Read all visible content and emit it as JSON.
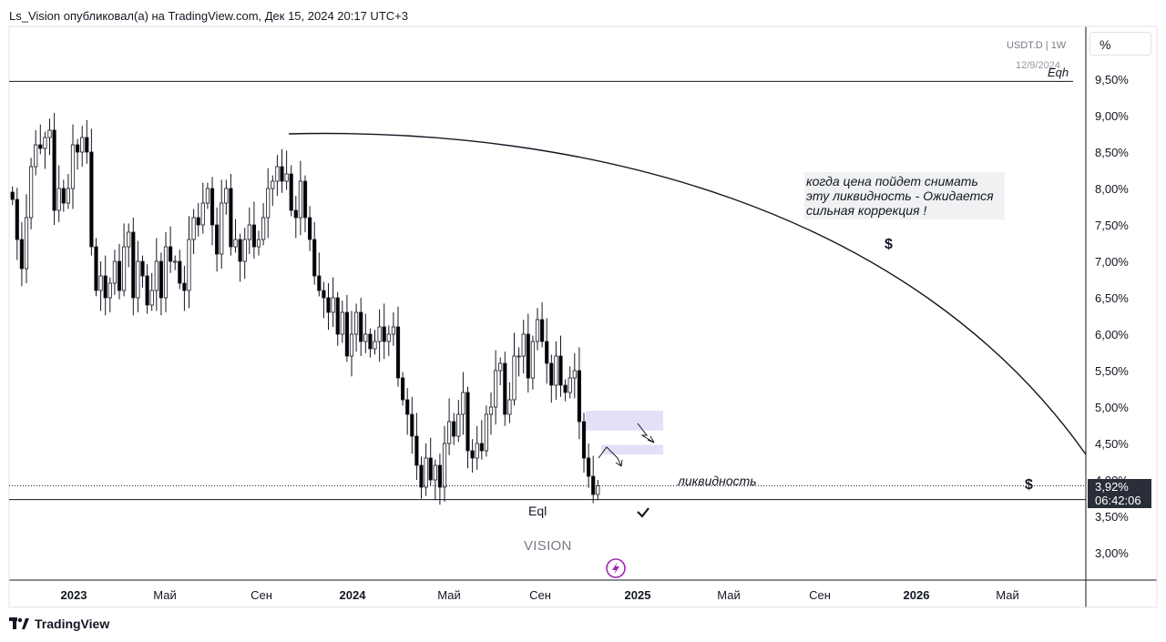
{
  "header": {
    "publisher": "Ls_Vision опубликовал(а) на TradingView.com, Дек 15, 2024 20:17 UTC+3"
  },
  "footer": {
    "brand": "TradingView",
    "logo_icon": "tradingview-logo-icon"
  },
  "symbol_label": "USDT.D  |  1W",
  "scale_mode": "%",
  "price_tag": {
    "price": "3,92%",
    "countdown": "06:42:06"
  },
  "annotations": {
    "eqh_date": "12/9/2024",
    "eqh": "Eqh",
    "note": "когда цена пойдет снимать эту ликвидность - Ожидается сильная коррекция !",
    "liquidity": "ликвидность",
    "eql": "Eql",
    "watermark": "VISION",
    "dollar": "$"
  },
  "colors": {
    "up": "#ffffff",
    "down": "#000000",
    "zone": "#e3e0f7",
    "lightning": "#9c27b0",
    "tag_bg": "#2a2e39"
  },
  "chart_data": {
    "type": "candlestick",
    "x_tick_labels": [
      "2023",
      "Май",
      "Сен",
      "2024",
      "Май",
      "Сен",
      "2025",
      "Май",
      "Сен",
      "2026",
      "Май"
    ],
    "x_tick_bold": [
      true,
      false,
      false,
      true,
      false,
      false,
      true,
      false,
      false,
      true,
      false
    ],
    "y_tick_labels": [
      "9,50%",
      "9,00%",
      "8,50%",
      "8,00%",
      "7,50%",
      "7,00%",
      "6,50%",
      "6,00%",
      "5,50%",
      "5,00%",
      "4,50%",
      "4,00%",
      "3,50%",
      "3,00%"
    ],
    "y_ticks": [
      9.5,
      9.0,
      8.5,
      8.0,
      7.5,
      7.0,
      6.5,
      6.0,
      5.5,
      5.0,
      4.5,
      4.0,
      3.5,
      3.0
    ],
    "ylim": [
      2.7,
      9.9
    ],
    "levels": {
      "eqh": 9.47,
      "eql": 3.73,
      "current": 3.92
    },
    "current_price": 3.92,
    "weekly_closes": [
      7.85,
      7.3,
      6.9,
      7.6,
      8.3,
      8.6,
      8.55,
      8.7,
      8.8,
      7.7,
      8.0,
      7.8,
      8.0,
      8.6,
      8.5,
      8.7,
      8.5,
      7.2,
      6.6,
      6.8,
      6.5,
      6.7,
      7.0,
      6.6,
      7.2,
      7.4,
      6.5,
      7.0,
      6.8,
      6.4,
      6.6,
      7.0,
      6.5,
      7.2,
      7.0,
      7.0,
      6.7,
      6.6,
      7.3,
      7.6,
      7.5,
      7.8,
      8.0,
      7.5,
      7.1,
      7.8,
      8.0,
      7.2,
      7.3,
      7.0,
      7.3,
      7.5,
      7.2,
      7.3,
      7.6,
      8.0,
      8.1,
      8.3,
      8.1,
      8.2,
      7.7,
      7.6,
      8.1,
      7.6,
      7.3,
      6.8,
      6.6,
      6.5,
      6.3,
      6.5,
      6.0,
      6.3,
      5.7,
      6.0,
      6.3,
      5.9,
      6.0,
      5.8,
      5.9,
      6.1,
      5.9,
      6.0,
      6.1,
      5.4,
      5.1,
      4.9,
      4.6,
      4.2,
      3.9,
      4.3,
      4.0,
      4.2,
      3.9,
      4.5,
      4.8,
      4.6,
      4.9,
      5.2,
      4.4,
      4.3,
      4.5,
      4.4,
      4.9,
      5.0,
      5.5,
      5.6,
      4.9,
      5.1,
      5.7,
      5.7,
      6.0,
      5.4,
      5.9,
      6.2,
      5.9,
      5.6,
      5.3,
      5.7,
      5.3,
      5.2,
      5.4,
      5.5,
      4.8,
      4.3,
      4.05,
      3.8,
      3.92
    ],
    "projection_curve": {
      "start": [
        "Сен 2023",
        8.75
      ],
      "end": [
        "2026",
        4.35
      ]
    },
    "zones": [
      {
        "from": 4.68,
        "to": 4.95
      },
      {
        "from": 4.35,
        "to": 4.48
      }
    ]
  }
}
